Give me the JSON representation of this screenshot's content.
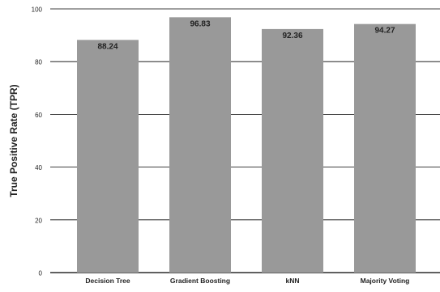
{
  "chart_data": {
    "type": "bar",
    "title": "",
    "xlabel": "",
    "ylabel": "True Positive Rate (TPR)",
    "categories": [
      "Decision Tree",
      "Gradient Boosting",
      "kNN",
      "Majority Voting"
    ],
    "values": [
      88.24,
      96.83,
      92.36,
      94.27
    ],
    "data_labels": [
      "88.24",
      "96.83",
      "92.36",
      "94.27"
    ],
    "ylim": [
      0,
      100
    ],
    "yticks": [
      0,
      20,
      40,
      60,
      80,
      100
    ],
    "ytick_labels": [
      "0",
      "20",
      "40",
      "60",
      "80",
      "100"
    ],
    "grid": true,
    "legend": "none",
    "colors": {
      "bar": "#999999",
      "grid": "#000000",
      "text": "#222222"
    }
  }
}
